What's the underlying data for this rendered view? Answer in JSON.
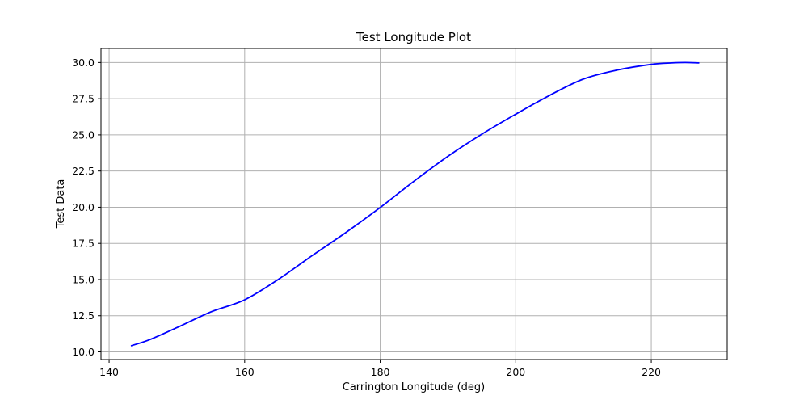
{
  "chart_data": {
    "type": "line",
    "title": "Test Longitude Plot",
    "xlabel": "Carrington Longitude (deg)",
    "ylabel": "Test Data",
    "xlim": [
      138.8,
      231.2
    ],
    "ylim": [
      9.47,
      30.97
    ],
    "x_ticks": [
      140,
      160,
      180,
      200,
      220
    ],
    "x_tick_labels": [
      "140",
      "160",
      "180",
      "200",
      "220"
    ],
    "y_ticks": [
      10.0,
      12.5,
      15.0,
      17.5,
      20.0,
      22.5,
      25.0,
      27.5,
      30.0
    ],
    "y_tick_labels": [
      "10.0",
      "12.5",
      "15.0",
      "17.5",
      "20.0",
      "22.5",
      "25.0",
      "27.5",
      "30.0"
    ],
    "grid": true,
    "series": [
      {
        "color": "#0000ff",
        "x": [
          143.3,
          146,
          150,
          155,
          160,
          165,
          170,
          175,
          180,
          185,
          190,
          195,
          200,
          205,
          210,
          215,
          220,
          223,
          225,
          227
        ],
        "y": [
          10.43,
          10.85,
          11.68,
          12.76,
          13.6,
          15.02,
          16.67,
          18.27,
          19.98,
          21.8,
          23.52,
          25.05,
          26.43,
          27.73,
          28.86,
          29.48,
          29.87,
          29.97,
          30.0,
          29.97
        ]
      }
    ]
  }
}
